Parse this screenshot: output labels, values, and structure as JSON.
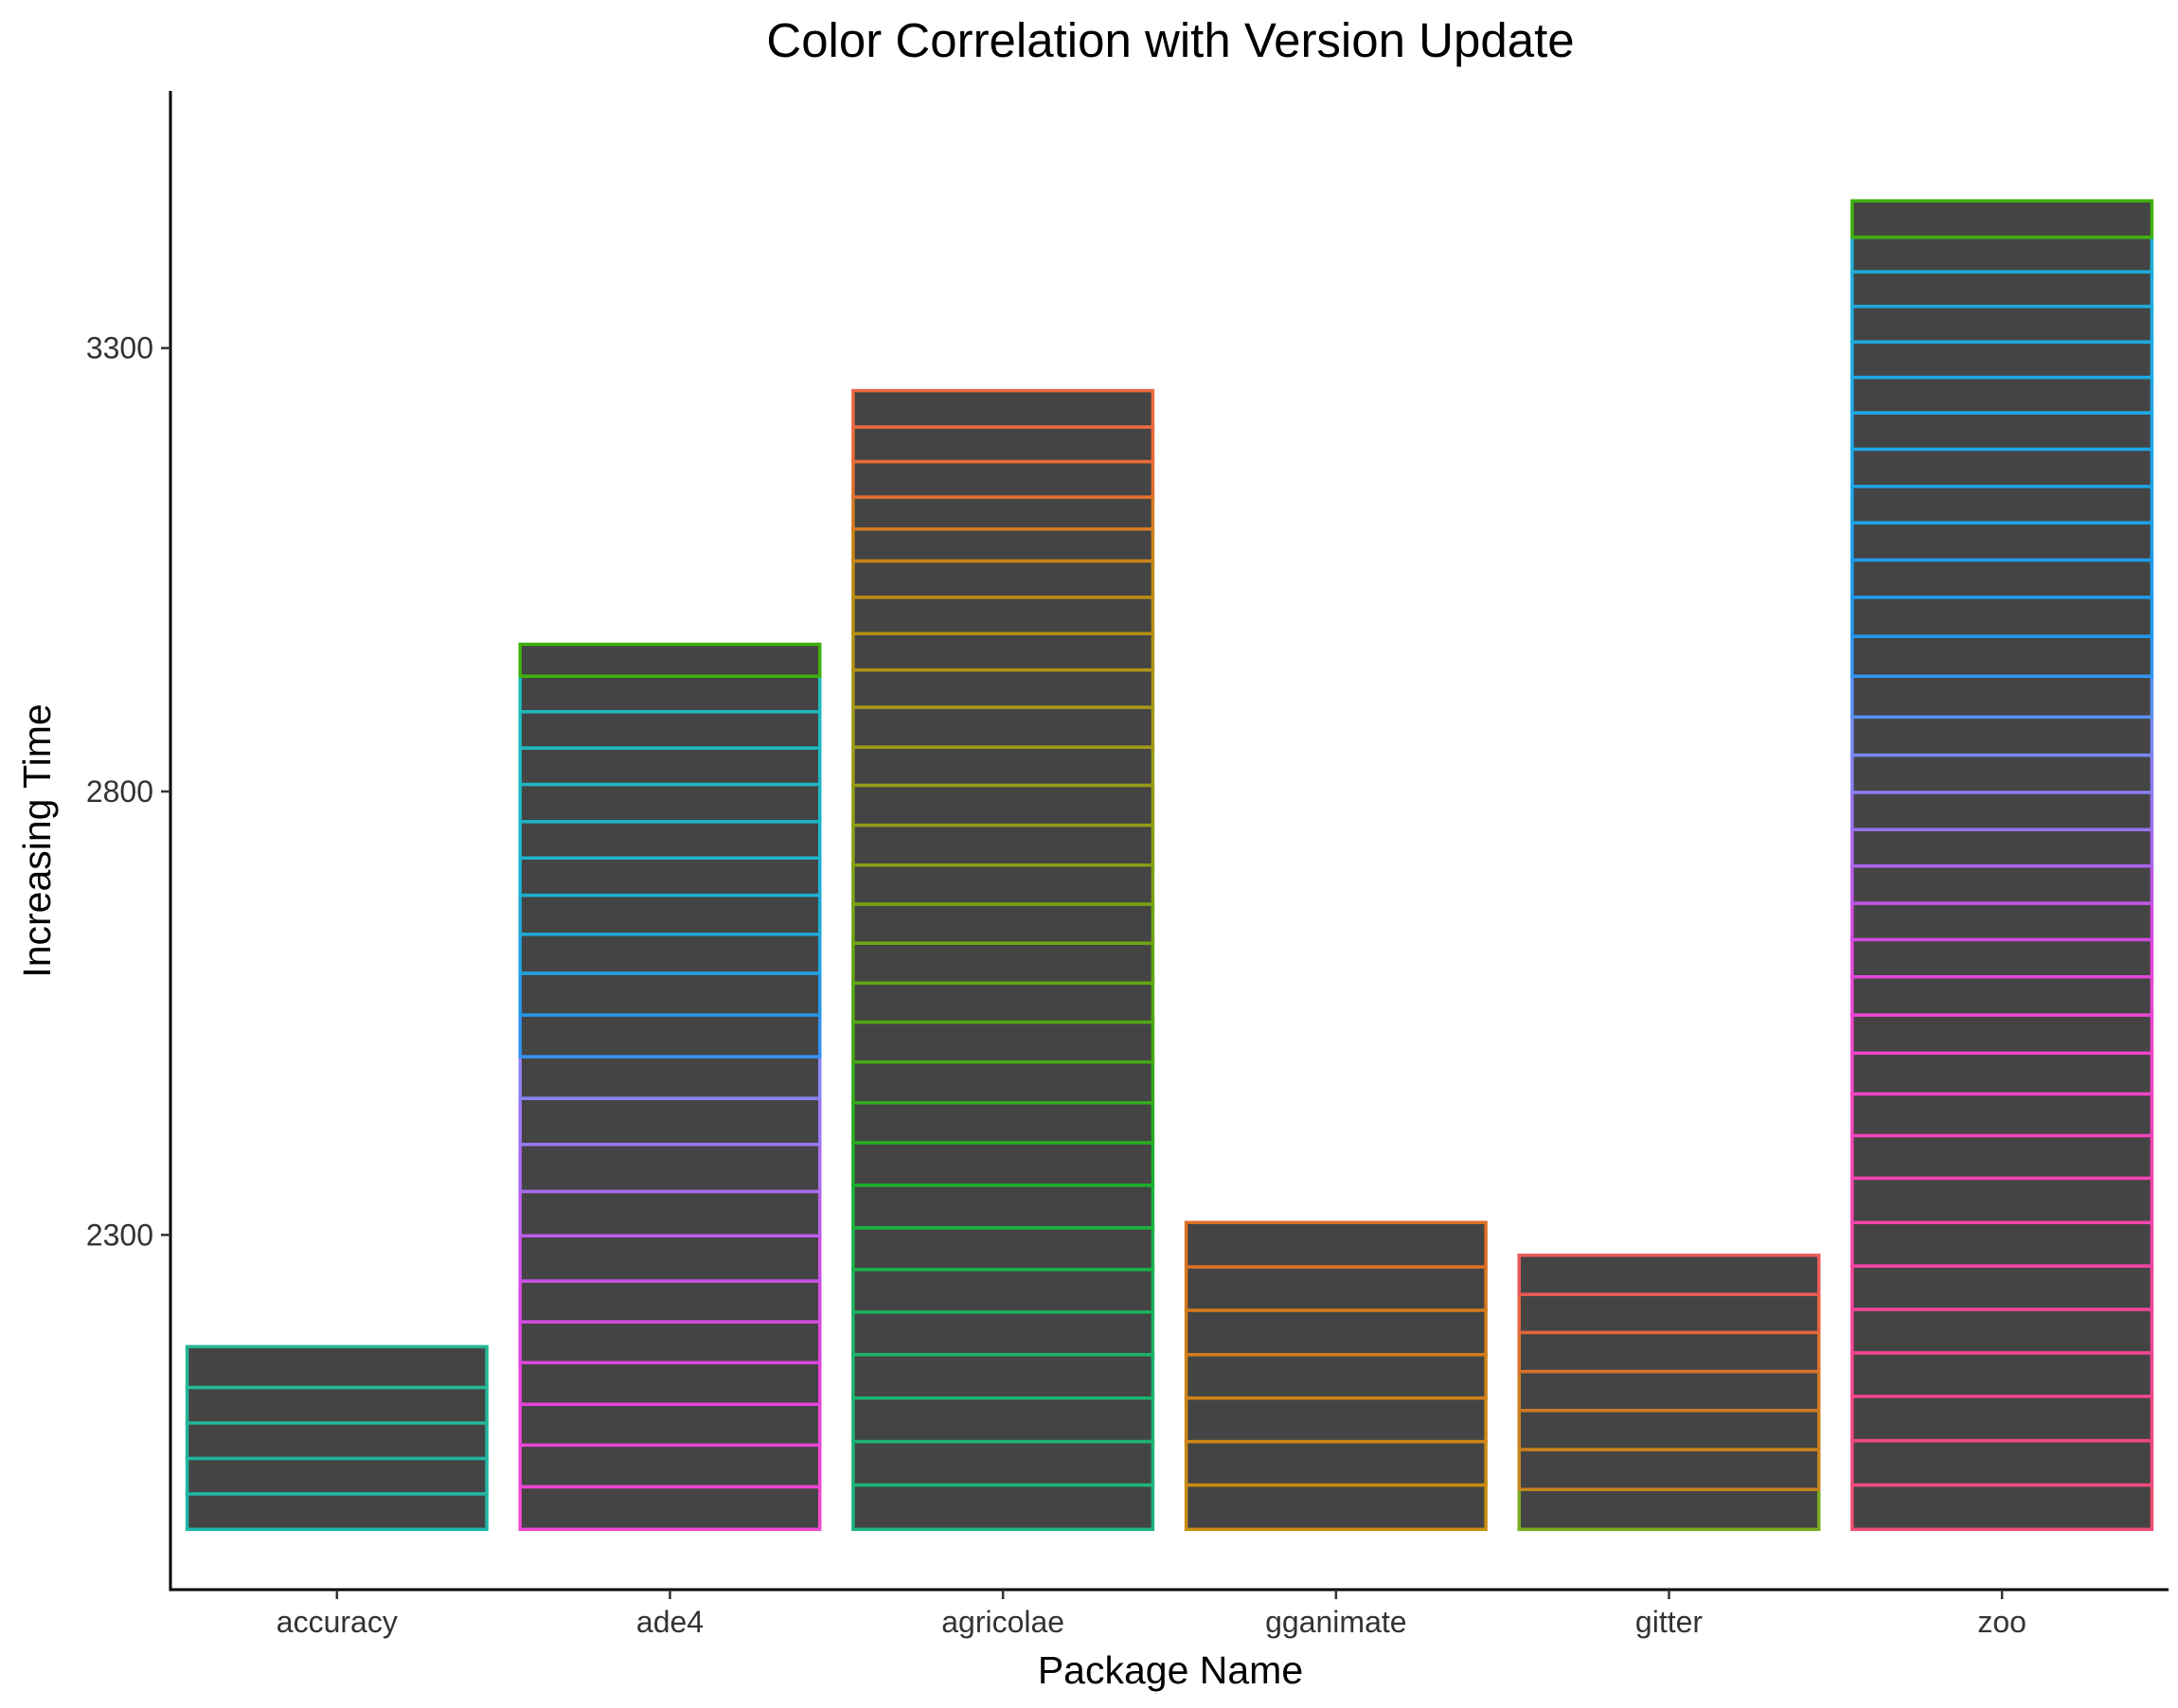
{
  "chart_data": {
    "type": "bar",
    "stacked": true,
    "title": "Color Correlation with Version Update",
    "xlabel": "Package Name",
    "ylabel": "Increasing Time",
    "ylim": [
      1900,
      3590
    ],
    "yticks": [
      2300,
      2800,
      3300
    ],
    "grid": false,
    "legend": "none",
    "bar_fill": "#444444",
    "categories": [
      "accuracy",
      "ade4",
      "agricolae",
      "gganimate",
      "gitter",
      "zoo"
    ],
    "bars": [
      {
        "category": "accuracy",
        "boundaries": [
          1968,
          2008,
          2048,
          2088,
          2128,
          2174
        ],
        "colors": [
          "#1FB8A8",
          "#1FB8A6",
          "#20B5A0",
          "#22B69A",
          "#24B895"
        ]
      },
      {
        "category": "ade4",
        "boundaries": [
          1968,
          2016,
          2063,
          2109,
          2156,
          2202,
          2248,
          2299,
          2349,
          2402,
          2454,
          2501,
          2548,
          2595,
          2639,
          2683,
          2725,
          2766,
          2808,
          2849,
          2890,
          2930,
          2966
        ],
        "colors": [
          "#F348D0",
          "#F046D2",
          "#E946D6",
          "#E545DA",
          "#DC47DE",
          "#D64BE2",
          "#CA52E6",
          "#BB60EA",
          "#AA6CEE",
          "#9B78F2",
          "#8B84F4",
          "#3492F0",
          "#2698E6",
          "#22A2DE",
          "#1FAAD8",
          "#1EB0D2",
          "#1EB4CC",
          "#1EB6C6",
          "#1EB6C2",
          "#1EB8BE",
          "#1FBABB",
          "#22BABA"
        ],
        "top_color": "#3FB10C"
      },
      {
        "category": "agricolae",
        "boundaries": [
          1968,
          2018,
          2067,
          2116,
          2165,
          2213,
          2261,
          2308,
          2356,
          2404,
          2449,
          2495,
          2540,
          2584,
          2629,
          2673,
          2717,
          2762,
          2807,
          2850,
          2895,
          2937,
          2978,
          3019,
          3060,
          3096,
          3132,
          3172,
          3211,
          3252
        ],
        "colors": [
          "#1CB57E",
          "#1DB47A",
          "#1CB376",
          "#1BB46E",
          "#1BB466",
          "#1AB25C",
          "#1AB24C",
          "#1CB33D",
          "#1CB02C",
          "#28AE22",
          "#35AC1A",
          "#44AA14",
          "#52A812",
          "#62A611",
          "#70A412",
          "#7BA214",
          "#87A016",
          "#909D16",
          "#999B18",
          "#A19818",
          "#A99618",
          "#B09314",
          "#B79012",
          "#BE8C12",
          "#CA8418",
          "#D67C22",
          "#E2702E",
          "#EA6A38",
          "#EC6A42"
        ]
      },
      {
        "category": "gganimate",
        "boundaries": [
          1968,
          2018,
          2067,
          2116,
          2165,
          2215,
          2264,
          2314
        ],
        "colors": [
          "#C98D10",
          "#CB8A12",
          "#CE8614",
          "#D08216",
          "#D37E1A",
          "#D6781E",
          "#DC7026"
        ]
      },
      {
        "category": "gitter",
        "boundaries": [
          1968,
          2013,
          2058,
          2102,
          2146,
          2190,
          2233,
          2277
        ],
        "colors": [
          "#C1881A",
          "#C4861C",
          "#C9821E",
          "#D07C24",
          "#DA722E",
          "#E6643E",
          "#EC5A4A"
        ],
        "bottom_color": "#7CAA20",
        "top_color": "#E85A54"
      },
      {
        "category": "zoo",
        "boundaries": [
          1968,
          2018,
          2068,
          2118,
          2167,
          2216,
          2265,
          2314,
          2364,
          2412,
          2459,
          2505,
          2548,
          2591,
          2633,
          2674,
          2716,
          2757,
          2799,
          2841,
          2884,
          2930,
          2975,
          3019,
          3061,
          3103,
          3144,
          3186,
          3227,
          3267,
          3307,
          3347,
          3386,
          3425,
          3466
        ],
        "colors": [
          "#EE4E72",
          "#F04A7C",
          "#F24884",
          "#F4468C",
          "#F44494",
          "#F4449C",
          "#F444A4",
          "#F444AC",
          "#F444B4",
          "#F244BC",
          "#F044C4",
          "#EE44CC",
          "#EA46D4",
          "#E246DA",
          "#D24AE0",
          "#BE56E6",
          "#AA66EC",
          "#9872F0",
          "#887EF2",
          "#7888F4",
          "#5890F4",
          "#3096F2",
          "#2298F0",
          "#1E9CEE",
          "#1E9EEC",
          "#1EA2EA",
          "#1EA4E8",
          "#1EA6E6",
          "#1EA8E4",
          "#1EAAE2",
          "#1EAADE",
          "#1EACDC",
          "#1EAED8",
          "#1EB0D4"
        ],
        "top_color": "#3FB10C"
      }
    ]
  }
}
